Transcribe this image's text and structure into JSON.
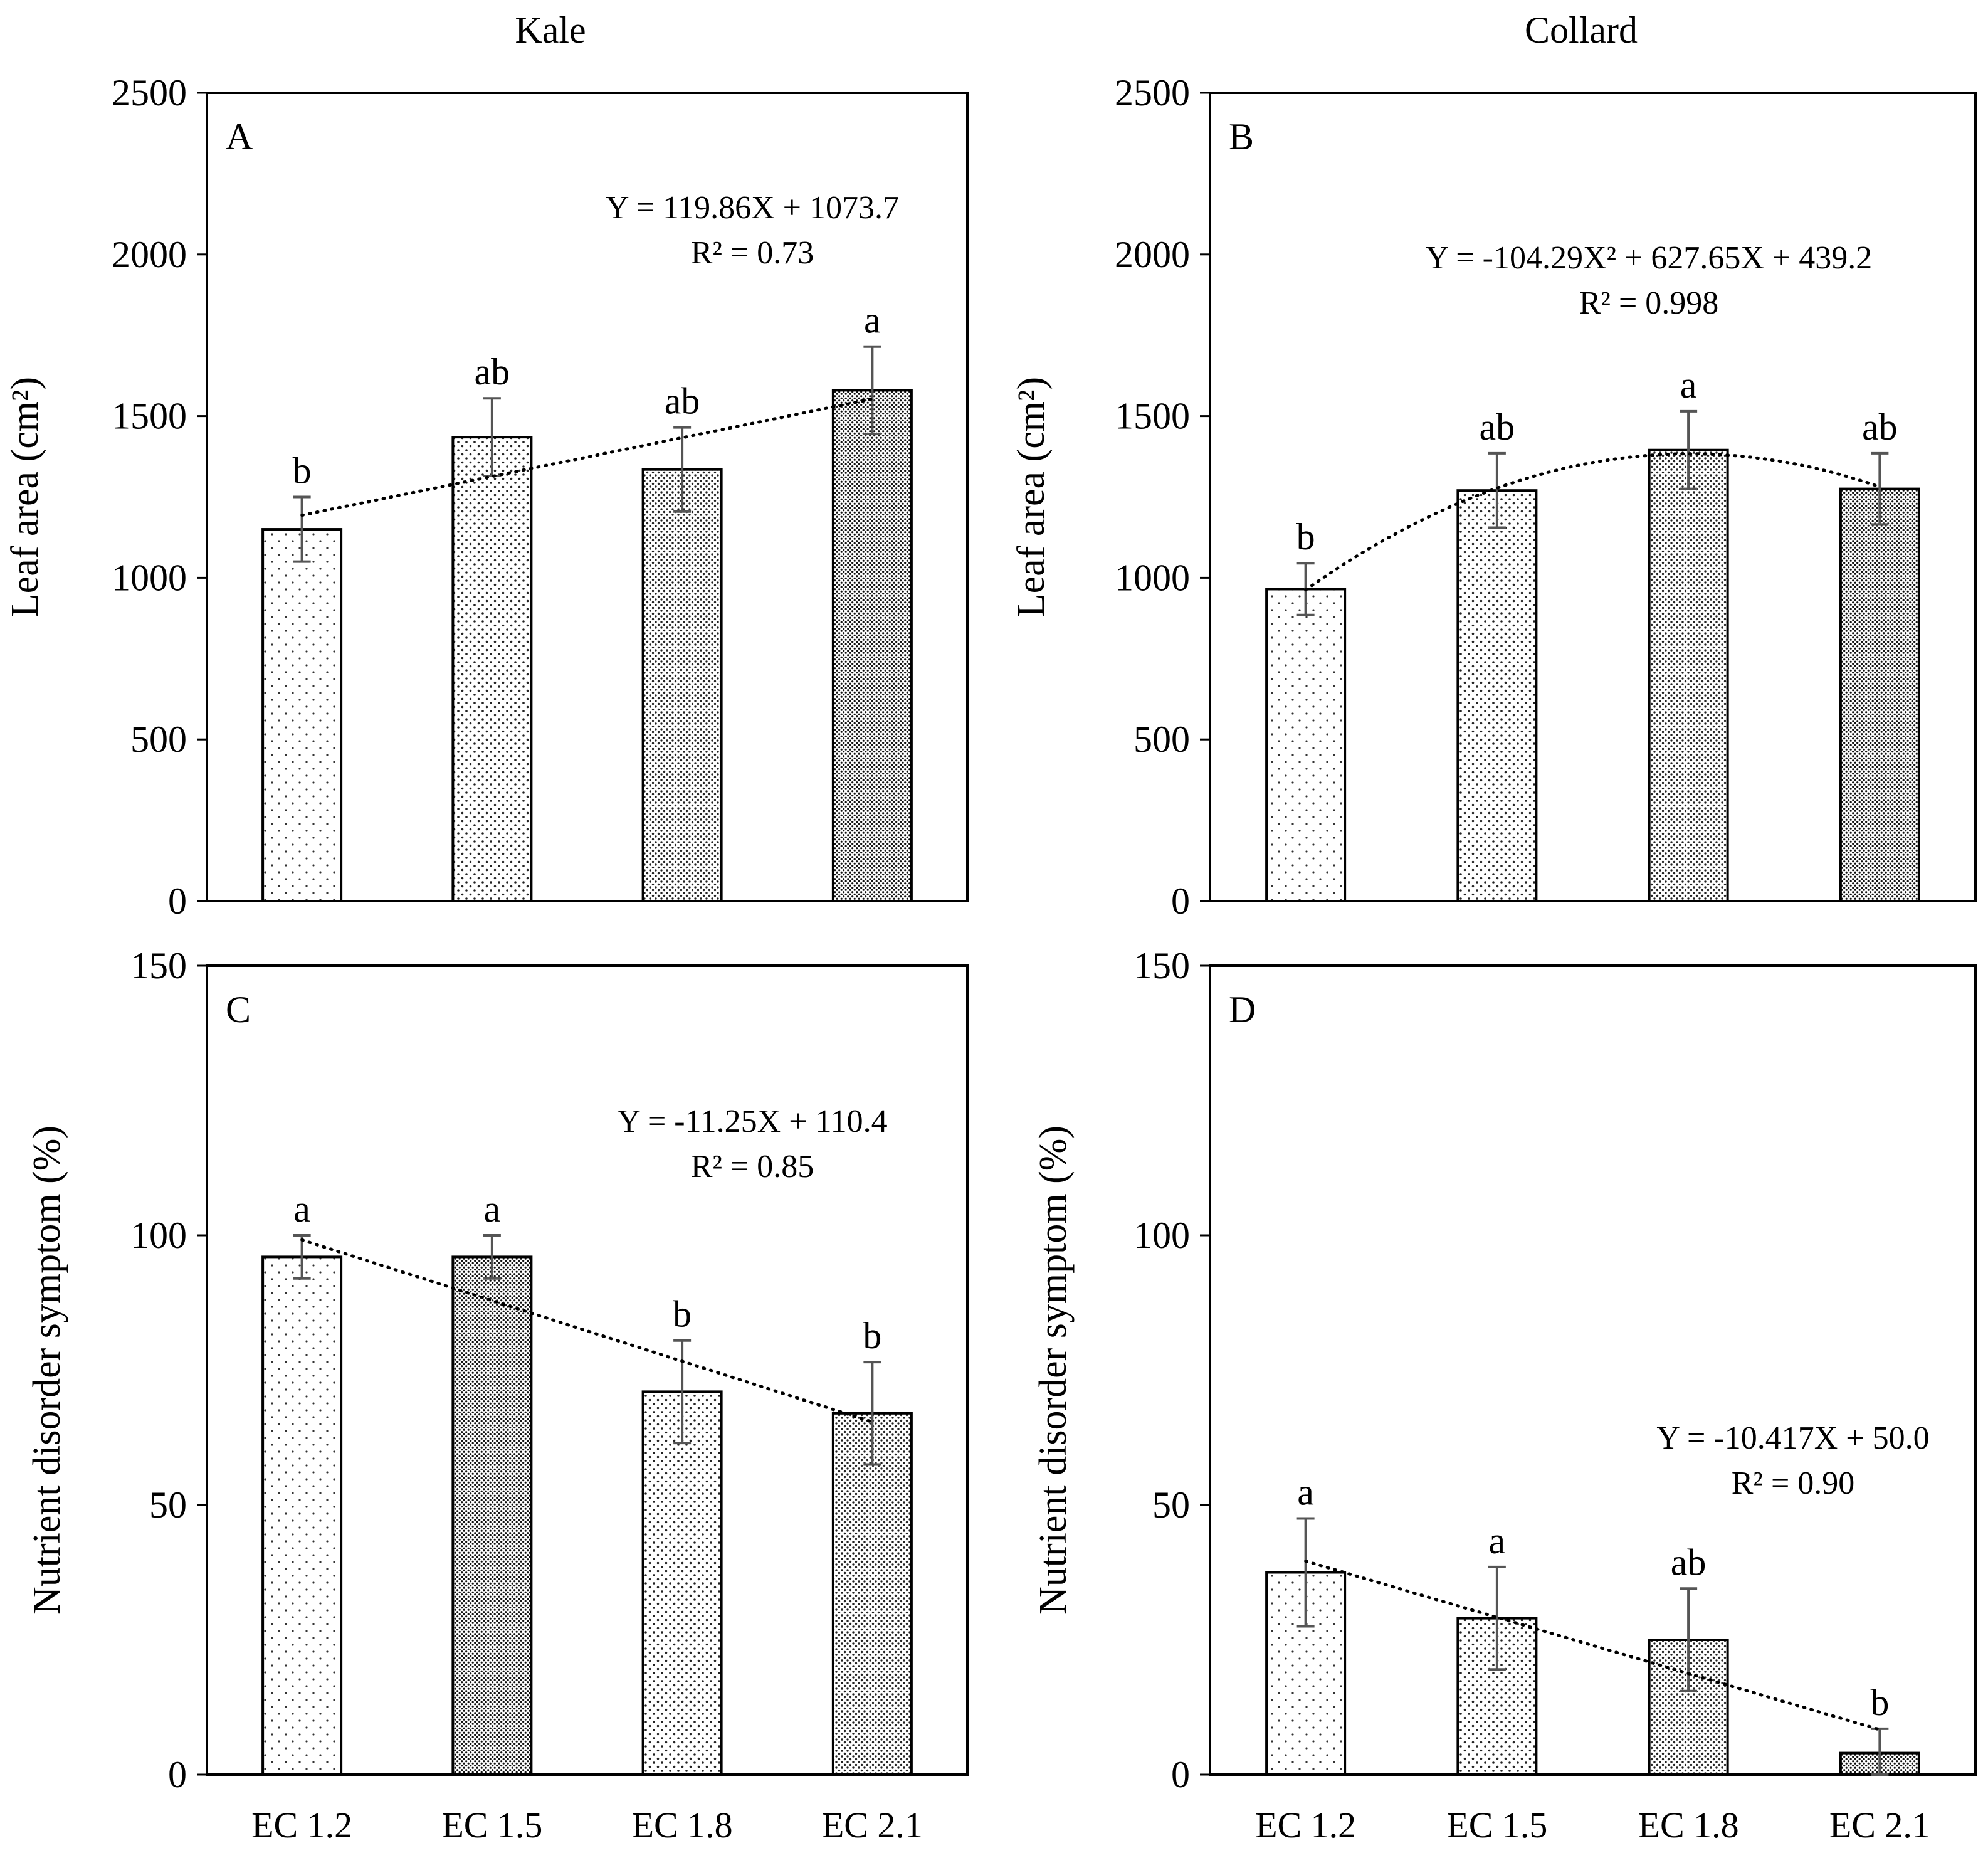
{
  "figure": {
    "column_titles": [
      "Kale",
      "Collard"
    ]
  },
  "chart_data": [
    {
      "type": "bar",
      "panel_label": "A",
      "crop": "Kale",
      "categories": [
        "EC 1.2",
        "EC 1.5",
        "EC 1.8",
        "EC 2.1"
      ],
      "values": [
        1150,
        1435,
        1335,
        1580
      ],
      "errors": [
        100,
        120,
        130,
        135
      ],
      "letters": [
        "b",
        "ab",
        "ab",
        "a"
      ],
      "ylabel": "Leaf area (cm²)",
      "ylim": [
        0,
        2500
      ],
      "yticks": [
        0,
        500,
        1000,
        1500,
        2000,
        2500
      ],
      "trendline": {
        "kind": "linear",
        "coefficients": [
          119.86,
          1073.7
        ]
      },
      "equation": "Y = 119.86X + 1073.7",
      "r2": "R² = 0.73",
      "show_xticklabels": false
    },
    {
      "type": "bar",
      "panel_label": "B",
      "crop": "Collard",
      "categories": [
        "EC 1.2",
        "EC 1.5",
        "EC 1.8",
        "EC 2.1"
      ],
      "values": [
        965,
        1270,
        1395,
        1275
      ],
      "errors": [
        80,
        115,
        120,
        110
      ],
      "letters": [
        "b",
        "ab",
        "a",
        "ab"
      ],
      "ylabel": "Leaf area (cm²)",
      "ylim": [
        0,
        2500
      ],
      "yticks": [
        0,
        500,
        1000,
        1500,
        2000,
        2500
      ],
      "trendline": {
        "kind": "quadratic",
        "coefficients": [
          -104.29,
          627.65,
          439.2
        ]
      },
      "equation": "Y = -104.29X² + 627.65X + 439.2",
      "r2": "R² = 0.998",
      "show_xticklabels": false
    },
    {
      "type": "bar",
      "panel_label": "C",
      "crop": "Kale",
      "categories": [
        "EC 1.2",
        "EC 1.5",
        "EC 1.8",
        "EC 2.1"
      ],
      "values": [
        96,
        96,
        71,
        67
      ],
      "errors": [
        4,
        4,
        9.5,
        9.5
      ],
      "letters": [
        "a",
        "a",
        "b",
        "b"
      ],
      "ylabel": "Nutrient disorder symptom (%)",
      "ylim": [
        0,
        150
      ],
      "yticks": [
        0,
        50,
        100,
        150
      ],
      "trendline": {
        "kind": "linear",
        "coefficients": [
          -11.25,
          110.4
        ]
      },
      "equation": "Y = -11.25X + 110.4",
      "r2": "R² = 0.85",
      "show_xticklabels": true
    },
    {
      "type": "bar",
      "panel_label": "D",
      "crop": "Collard",
      "categories": [
        "EC 1.2",
        "EC 1.5",
        "EC 1.8",
        "EC 2.1"
      ],
      "values": [
        37.5,
        29,
        25,
        4
      ],
      "errors": [
        10,
        9.5,
        9.5,
        4.5
      ],
      "letters": [
        "a",
        "a",
        "ab",
        "b"
      ],
      "ylabel": "Nutrient disorder symptom (%)",
      "ylim": [
        0,
        150
      ],
      "yticks": [
        0,
        50,
        100,
        150
      ],
      "trendline": {
        "kind": "linear",
        "coefficients": [
          -10.417,
          50.0
        ]
      },
      "equation": "Y = -10.417X + 50.0",
      "r2": "R² = 0.90",
      "show_xticklabels": true
    }
  ]
}
